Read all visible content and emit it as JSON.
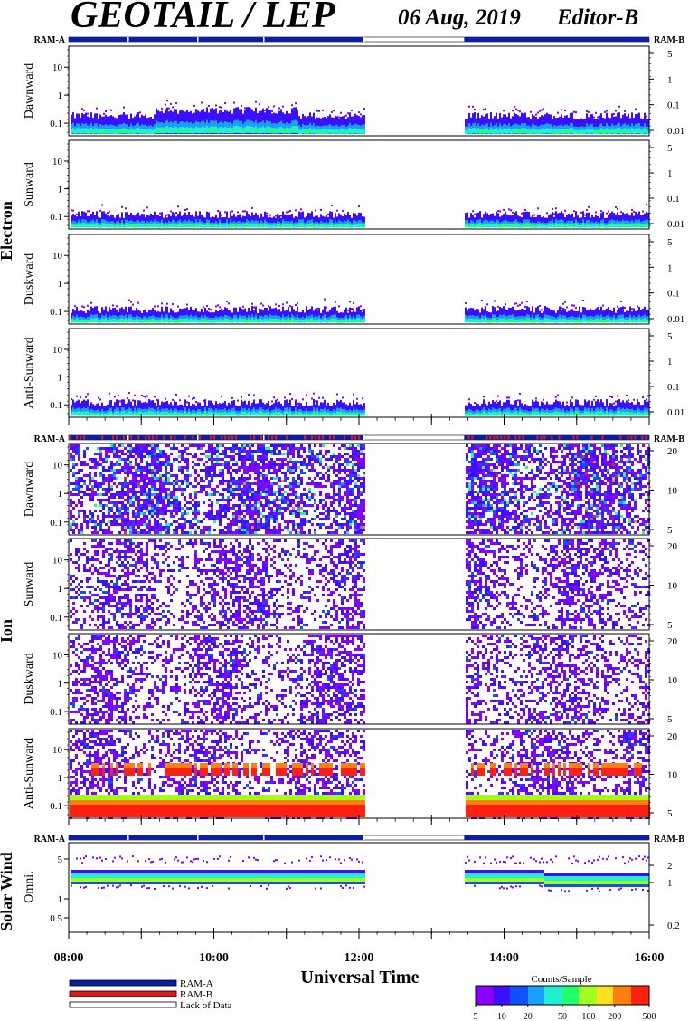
{
  "header": {
    "title": "GEOTAIL / LEP",
    "date": "06 Aug, 2019",
    "editor": "Editor-B"
  },
  "colors": {
    "ram_a": "#0a1ea8",
    "ram_b": "#e01818",
    "lack": "#ffffff"
  },
  "chart_data": {
    "type": "heatmap",
    "xlabel": "Universal Time",
    "xticks": [
      "08:00",
      "10:00",
      "12:00",
      "14:00",
      "16:00"
    ],
    "xlim_hours": [
      8,
      16
    ],
    "data_gap_hours": [
      12.08,
      13.45
    ],
    "groups": [
      {
        "name": "Electron",
        "panels": [
          "Dawnward",
          "Sunward",
          "Duskward",
          "Anti-Sunward"
        ]
      },
      {
        "name": "Ion",
        "panels": [
          "Dawnward",
          "Sunward",
          "Duskward",
          "Anti-Sunward"
        ]
      },
      {
        "name": "Solar Wind",
        "panels": [
          "Omni."
        ]
      }
    ],
    "electron_left_ticks": [
      "10",
      "1",
      "0.1"
    ],
    "electron_right_ticks": [
      "5",
      "1",
      "0.1",
      "0.01"
    ],
    "ion_left_ticks": [
      "10",
      "1",
      "0.1"
    ],
    "ion_right_ticks": [
      "20",
      "10",
      "5"
    ],
    "sw_left_ticks": [
      "5",
      "1",
      "0.5"
    ],
    "sw_right_ticks": [
      "2",
      "1",
      "0.2"
    ],
    "ram_labels": {
      "left": "RAM-A",
      "right": "RAM-B"
    },
    "colorbar": {
      "title": "Counts/Sample",
      "ticks": [
        "5",
        "10",
        "20",
        "50",
        "100",
        "200",
        "500"
      ],
      "range": [
        5,
        500
      ],
      "scale": "log"
    },
    "legend": [
      {
        "label": "RAM-A",
        "color": "#0a1ea8"
      },
      {
        "label": "RAM-B",
        "color": "#e01818"
      },
      {
        "label": "Lack of Data",
        "color": "#ffffff"
      }
    ]
  }
}
